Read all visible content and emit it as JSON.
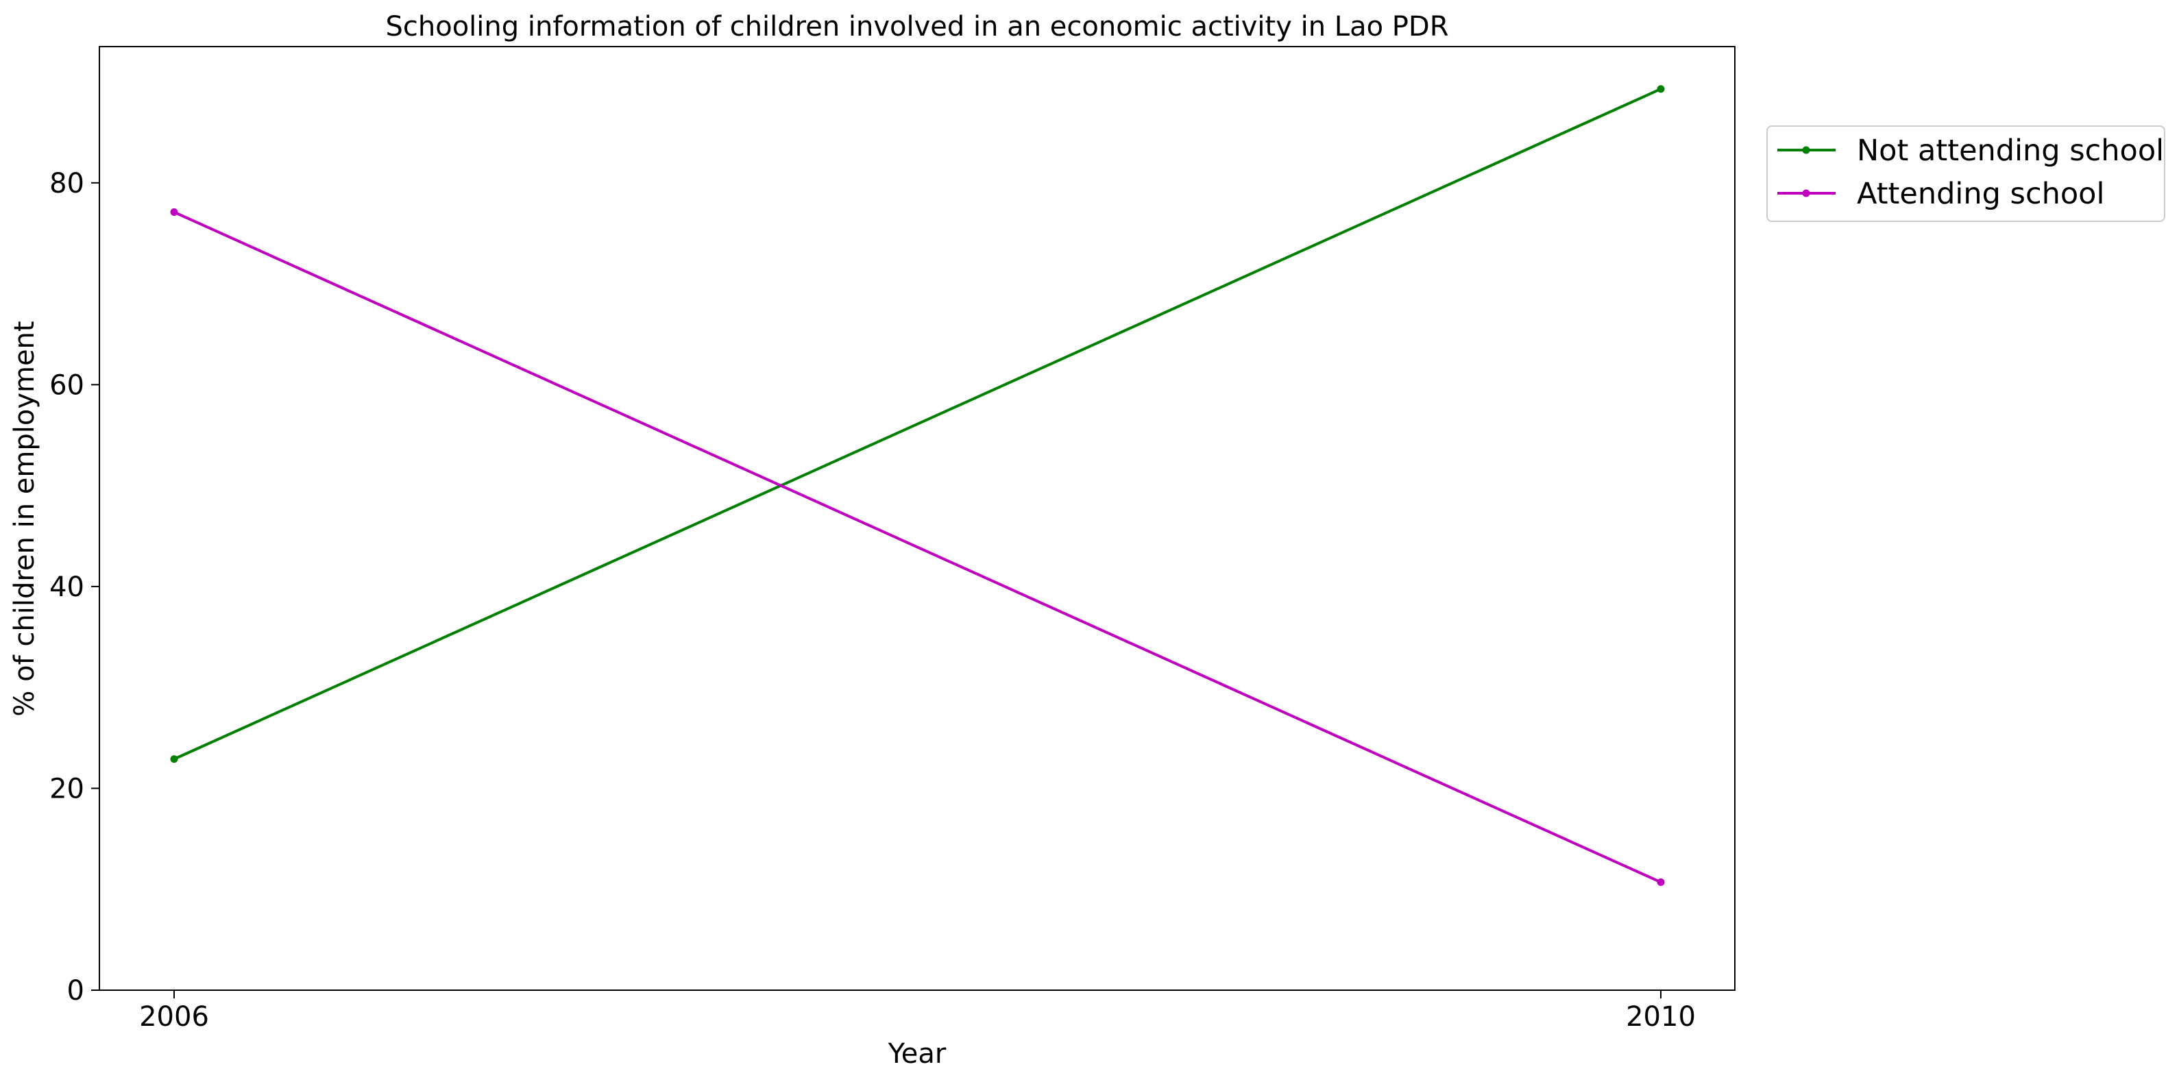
{
  "chart_data": {
    "type": "line",
    "title": "Schooling information of children involved in an economic activity in Lao PDR",
    "xlabel": "Year",
    "ylabel": "% of children in employment",
    "x": [
      2006,
      2010
    ],
    "x_tick_labels": [
      "2006",
      "2010"
    ],
    "ylim": [
      0,
      93.5
    ],
    "y_ticks": [
      0,
      20,
      40,
      60,
      80
    ],
    "grid": false,
    "legend_position": "outside-top-right",
    "series": [
      {
        "name": "Not attending school",
        "color": "#008000",
        "marker": "dot",
        "values": [
          22.9,
          89.3
        ]
      },
      {
        "name": "Attending school",
        "color": "#bf00bf",
        "marker": "dot",
        "values": [
          77.1,
          10.7
        ]
      }
    ]
  }
}
